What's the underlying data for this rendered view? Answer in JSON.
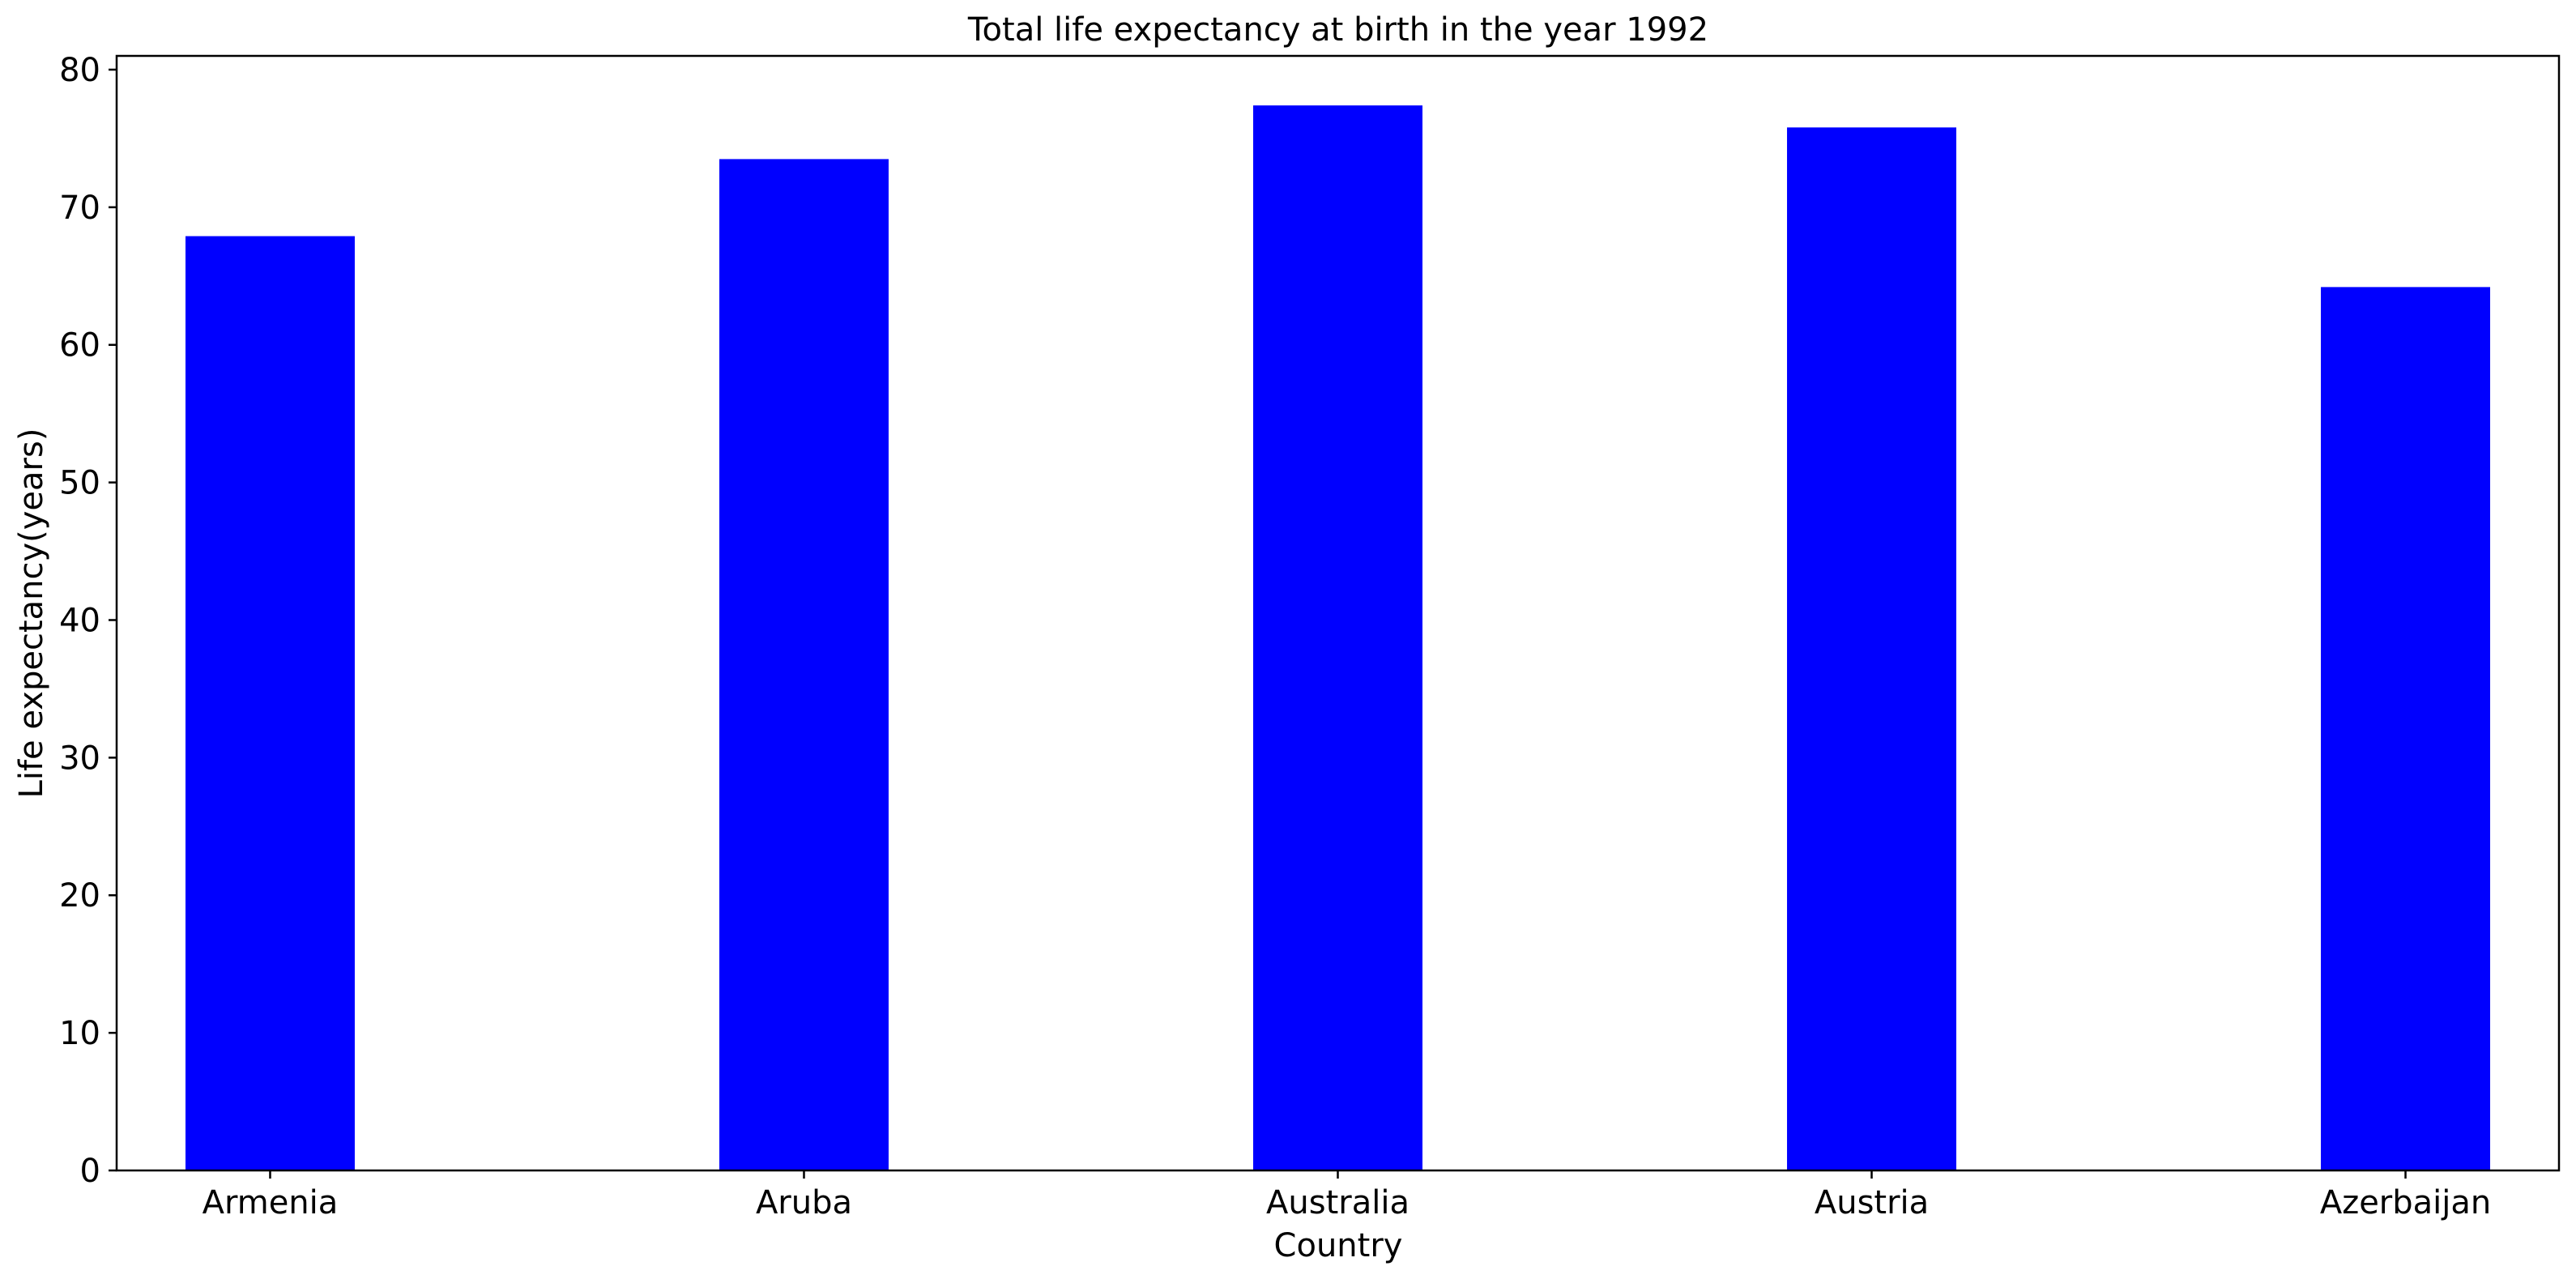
{
  "chart_data": {
    "type": "bar",
    "title": "Total life expectancy at birth in the year 1992",
    "xlabel": "Country",
    "ylabel": "Life expectancy(years)",
    "categories": [
      "Armenia",
      "Aruba",
      "Australia",
      "Austria",
      "Azerbaijan"
    ],
    "values": [
      67.9,
      73.5,
      77.4,
      75.8,
      64.2
    ],
    "ylim": [
      0,
      81
    ],
    "yticks": [
      0,
      10,
      20,
      30,
      40,
      50,
      60,
      70,
      80
    ],
    "ytick_labels": [
      "0",
      "10",
      "20",
      "30",
      "40",
      "50",
      "60",
      "70",
      "80"
    ],
    "grid": false,
    "legend": "none",
    "bar_color": "#0000ff"
  }
}
